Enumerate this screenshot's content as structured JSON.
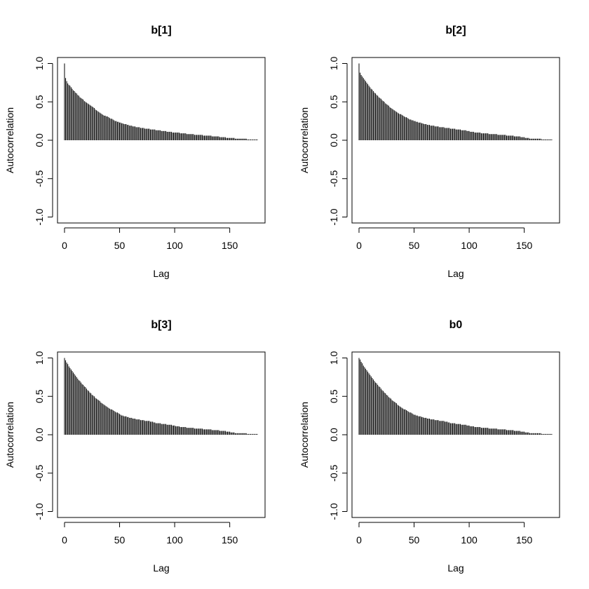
{
  "chart_data": [
    {
      "type": "bar",
      "title": "b[1]",
      "xlabel": "Lag",
      "ylabel": "Autocorrelation",
      "xlim": [
        0,
        175
      ],
      "ylim": [
        -1,
        1
      ],
      "xticks": [
        "0",
        "50",
        "100",
        "150"
      ],
      "yticks": [
        "-1.0",
        "-0.5",
        "0.0",
        "0.5",
        "1.0"
      ],
      "values": [
        1.0,
        0.81,
        0.77,
        0.74,
        0.72,
        0.71,
        0.69,
        0.67,
        0.65,
        0.64,
        0.62,
        0.61,
        0.59,
        0.58,
        0.56,
        0.55,
        0.54,
        0.53,
        0.51,
        0.5,
        0.49,
        0.48,
        0.47,
        0.46,
        0.45,
        0.44,
        0.43,
        0.42,
        0.4,
        0.39,
        0.38,
        0.37,
        0.36,
        0.35,
        0.34,
        0.33,
        0.32,
        0.32,
        0.31,
        0.31,
        0.3,
        0.29,
        0.28,
        0.28,
        0.27,
        0.26,
        0.25,
        0.25,
        0.24,
        0.24,
        0.23,
        0.23,
        0.22,
        0.22,
        0.21,
        0.21,
        0.21,
        0.2,
        0.2,
        0.19,
        0.19,
        0.19,
        0.18,
        0.18,
        0.18,
        0.17,
        0.17,
        0.17,
        0.17,
        0.16,
        0.16,
        0.16,
        0.16,
        0.15,
        0.15,
        0.15,
        0.15,
        0.15,
        0.14,
        0.14,
        0.14,
        0.14,
        0.14,
        0.13,
        0.13,
        0.13,
        0.13,
        0.13,
        0.12,
        0.12,
        0.12,
        0.12,
        0.12,
        0.11,
        0.11,
        0.11,
        0.11,
        0.11,
        0.1,
        0.1,
        0.1,
        0.1,
        0.1,
        0.1,
        0.1,
        0.09,
        0.09,
        0.09,
        0.09,
        0.09,
        0.09,
        0.08,
        0.08,
        0.08,
        0.08,
        0.08,
        0.08,
        0.08,
        0.07,
        0.07,
        0.07,
        0.07,
        0.07,
        0.07,
        0.07,
        0.07,
        0.06,
        0.06,
        0.06,
        0.06,
        0.06,
        0.06,
        0.06,
        0.06,
        0.05,
        0.05,
        0.05,
        0.05,
        0.05,
        0.05,
        0.05,
        0.04,
        0.04,
        0.04,
        0.04,
        0.04,
        0.04,
        0.03,
        0.03,
        0.03,
        0.03,
        0.03,
        0.03,
        0.03,
        0.03,
        0.02,
        0.02,
        0.02,
        0.02,
        0.02,
        0.02,
        0.02,
        0.02,
        0.02,
        0.02,
        0.02,
        0.01,
        0.01,
        0.01,
        0.01,
        0.01,
        0.01,
        0.01,
        0.01,
        0.01,
        0.01
      ]
    },
    {
      "type": "bar",
      "title": "b[2]",
      "xlabel": "Lag",
      "ylabel": "Autocorrelation",
      "xlim": [
        0,
        175
      ],
      "ylim": [
        -1,
        1
      ],
      "xticks": [
        "0",
        "50",
        "100",
        "150"
      ],
      "yticks": [
        "-1.0",
        "-0.5",
        "0.0",
        "0.5",
        "1.0"
      ],
      "values": [
        1.0,
        0.88,
        0.85,
        0.83,
        0.81,
        0.79,
        0.77,
        0.75,
        0.73,
        0.71,
        0.69,
        0.67,
        0.66,
        0.64,
        0.62,
        0.61,
        0.59,
        0.58,
        0.56,
        0.55,
        0.54,
        0.52,
        0.51,
        0.5,
        0.48,
        0.47,
        0.46,
        0.45,
        0.43,
        0.42,
        0.41,
        0.4,
        0.39,
        0.38,
        0.37,
        0.36,
        0.35,
        0.34,
        0.34,
        0.33,
        0.32,
        0.31,
        0.3,
        0.3,
        0.29,
        0.28,
        0.27,
        0.27,
        0.26,
        0.26,
        0.25,
        0.25,
        0.24,
        0.24,
        0.23,
        0.23,
        0.23,
        0.22,
        0.22,
        0.21,
        0.21,
        0.21,
        0.2,
        0.2,
        0.2,
        0.19,
        0.19,
        0.19,
        0.19,
        0.18,
        0.18,
        0.18,
        0.18,
        0.17,
        0.17,
        0.17,
        0.17,
        0.17,
        0.16,
        0.16,
        0.16,
        0.16,
        0.16,
        0.15,
        0.15,
        0.15,
        0.15,
        0.15,
        0.14,
        0.14,
        0.14,
        0.14,
        0.14,
        0.13,
        0.13,
        0.13,
        0.13,
        0.13,
        0.12,
        0.12,
        0.12,
        0.11,
        0.11,
        0.11,
        0.11,
        0.1,
        0.1,
        0.1,
        0.1,
        0.1,
        0.1,
        0.09,
        0.09,
        0.09,
        0.09,
        0.09,
        0.09,
        0.09,
        0.08,
        0.08,
        0.08,
        0.08,
        0.08,
        0.08,
        0.08,
        0.08,
        0.07,
        0.07,
        0.07,
        0.07,
        0.07,
        0.07,
        0.07,
        0.07,
        0.06,
        0.06,
        0.06,
        0.06,
        0.06,
        0.06,
        0.06,
        0.05,
        0.05,
        0.05,
        0.05,
        0.05,
        0.05,
        0.04,
        0.04,
        0.04,
        0.04,
        0.03,
        0.03,
        0.03,
        0.03,
        0.02,
        0.02,
        0.02,
        0.02,
        0.02,
        0.02,
        0.02,
        0.02,
        0.02,
        0.02,
        0.02,
        0.01,
        0.01,
        0.01,
        0.01,
        0.01,
        0.01,
        0.01,
        0.01,
        0.01,
        0.01
      ]
    },
    {
      "type": "bar",
      "title": "b[3]",
      "xlabel": "Lag",
      "ylabel": "Autocorrelation",
      "xlim": [
        0,
        175
      ],
      "ylim": [
        -1,
        1
      ],
      "xticks": [
        "0",
        "50",
        "100",
        "150"
      ],
      "yticks": [
        "-1.0",
        "-0.5",
        "0.0",
        "0.5",
        "1.0"
      ],
      "values": [
        1.0,
        0.97,
        0.94,
        0.92,
        0.89,
        0.87,
        0.85,
        0.83,
        0.81,
        0.79,
        0.77,
        0.75,
        0.73,
        0.71,
        0.7,
        0.68,
        0.66,
        0.65,
        0.63,
        0.62,
        0.6,
        0.58,
        0.57,
        0.55,
        0.54,
        0.52,
        0.51,
        0.5,
        0.48,
        0.47,
        0.46,
        0.45,
        0.44,
        0.42,
        0.41,
        0.4,
        0.39,
        0.38,
        0.37,
        0.36,
        0.35,
        0.34,
        0.33,
        0.33,
        0.32,
        0.31,
        0.3,
        0.29,
        0.29,
        0.28,
        0.27,
        0.26,
        0.25,
        0.25,
        0.24,
        0.24,
        0.24,
        0.23,
        0.23,
        0.22,
        0.22,
        0.22,
        0.21,
        0.21,
        0.21,
        0.2,
        0.2,
        0.2,
        0.2,
        0.19,
        0.19,
        0.19,
        0.19,
        0.18,
        0.18,
        0.18,
        0.18,
        0.18,
        0.17,
        0.17,
        0.17,
        0.16,
        0.16,
        0.15,
        0.15,
        0.15,
        0.15,
        0.15,
        0.14,
        0.14,
        0.14,
        0.14,
        0.14,
        0.13,
        0.13,
        0.13,
        0.13,
        0.13,
        0.12,
        0.12,
        0.12,
        0.11,
        0.11,
        0.11,
        0.11,
        0.1,
        0.1,
        0.1,
        0.1,
        0.1,
        0.1,
        0.09,
        0.09,
        0.09,
        0.09,
        0.09,
        0.09,
        0.09,
        0.08,
        0.08,
        0.08,
        0.08,
        0.08,
        0.08,
        0.08,
        0.08,
        0.07,
        0.07,
        0.07,
        0.07,
        0.07,
        0.07,
        0.07,
        0.07,
        0.06,
        0.06,
        0.06,
        0.06,
        0.06,
        0.06,
        0.06,
        0.05,
        0.05,
        0.05,
        0.05,
        0.05,
        0.05,
        0.04,
        0.04,
        0.04,
        0.04,
        0.03,
        0.03,
        0.03,
        0.03,
        0.02,
        0.02,
        0.02,
        0.02,
        0.02,
        0.02,
        0.02,
        0.02,
        0.02,
        0.02,
        0.02,
        0.01,
        0.01,
        0.01,
        0.01,
        0.01,
        0.01,
        0.01,
        0.01,
        0.01,
        0.01
      ]
    },
    {
      "type": "bar",
      "title": "b0",
      "xlabel": "Lag",
      "ylabel": "Autocorrelation",
      "xlim": [
        0,
        175
      ],
      "ylim": [
        -1,
        1
      ],
      "xticks": [
        "0",
        "50",
        "100",
        "150"
      ],
      "yticks": [
        "-1.0",
        "-0.5",
        "0.0",
        "0.5",
        "1.0"
      ],
      "values": [
        1.0,
        0.98,
        0.95,
        0.93,
        0.9,
        0.88,
        0.86,
        0.84,
        0.82,
        0.8,
        0.78,
        0.76,
        0.74,
        0.72,
        0.7,
        0.68,
        0.67,
        0.65,
        0.63,
        0.62,
        0.6,
        0.58,
        0.57,
        0.55,
        0.54,
        0.52,
        0.51,
        0.49,
        0.48,
        0.47,
        0.45,
        0.44,
        0.43,
        0.42,
        0.41,
        0.39,
        0.38,
        0.37,
        0.36,
        0.35,
        0.34,
        0.33,
        0.33,
        0.32,
        0.31,
        0.3,
        0.29,
        0.29,
        0.28,
        0.27,
        0.26,
        0.26,
        0.25,
        0.25,
        0.24,
        0.24,
        0.24,
        0.23,
        0.23,
        0.22,
        0.22,
        0.22,
        0.21,
        0.21,
        0.21,
        0.2,
        0.2,
        0.2,
        0.2,
        0.19,
        0.19,
        0.19,
        0.19,
        0.18,
        0.18,
        0.18,
        0.18,
        0.18,
        0.17,
        0.17,
        0.17,
        0.16,
        0.16,
        0.15,
        0.15,
        0.15,
        0.15,
        0.15,
        0.14,
        0.14,
        0.14,
        0.14,
        0.14,
        0.13,
        0.13,
        0.13,
        0.13,
        0.13,
        0.12,
        0.12,
        0.12,
        0.11,
        0.11,
        0.11,
        0.11,
        0.1,
        0.1,
        0.1,
        0.1,
        0.1,
        0.1,
        0.09,
        0.09,
        0.09,
        0.09,
        0.09,
        0.09,
        0.09,
        0.08,
        0.08,
        0.08,
        0.08,
        0.08,
        0.08,
        0.08,
        0.08,
        0.07,
        0.07,
        0.07,
        0.07,
        0.07,
        0.07,
        0.07,
        0.07,
        0.06,
        0.06,
        0.06,
        0.06,
        0.06,
        0.06,
        0.06,
        0.05,
        0.05,
        0.05,
        0.05,
        0.05,
        0.05,
        0.04,
        0.04,
        0.04,
        0.04,
        0.03,
        0.03,
        0.03,
        0.03,
        0.02,
        0.02,
        0.02,
        0.02,
        0.02,
        0.02,
        0.02,
        0.02,
        0.02,
        0.02,
        0.02,
        0.01,
        0.01,
        0.01,
        0.01,
        0.01,
        0.01,
        0.01,
        0.01,
        0.01,
        0.01
      ]
    }
  ]
}
